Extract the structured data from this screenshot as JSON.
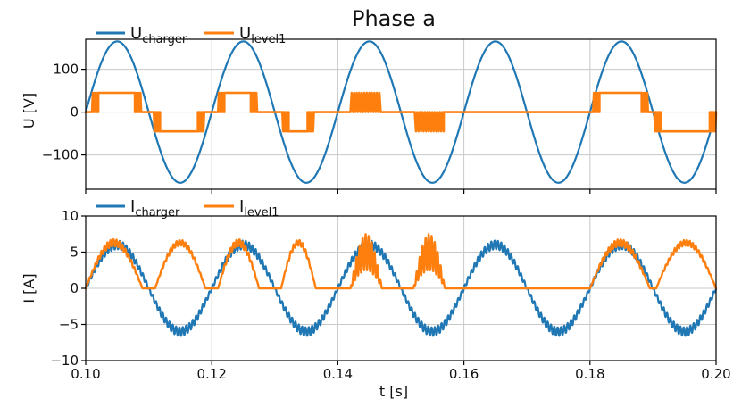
{
  "chart_data": {
    "type": "line",
    "title": "Phase a",
    "colors": {
      "blue": "#1f77b4",
      "orange": "#ff7f0e",
      "axis": "#000000",
      "grid": "#c8c8c8"
    },
    "shared_x": {
      "label": "t [s]",
      "range": [
        0.1,
        0.2
      ],
      "ticks": [
        0.1,
        0.12,
        0.14,
        0.16,
        0.18,
        0.2
      ],
      "tick_labels": [
        "0.10",
        "0.12",
        "0.14",
        "0.16",
        "0.18",
        "0.20"
      ]
    },
    "subplots": [
      {
        "ylabel": "U [V]",
        "ylim": [
          -180,
          170
        ],
        "yticks": [
          -100,
          0,
          100
        ],
        "ytick_labels": [
          "−100",
          "0",
          "100"
        ],
        "grid": true,
        "legend": {
          "placement": "top-left",
          "entries": [
            {
              "main": "U",
              "sub": "charger",
              "color": "blue"
            },
            {
              "main": "U",
              "sub": "level1",
              "color": "orange"
            }
          ]
        },
        "series": [
          {
            "name": "Ucharger",
            "color": "blue",
            "kind": "sine",
            "amplitude": 165,
            "period_s": 0.02,
            "peak_at": 0.105
          },
          {
            "name": "Ulevel1",
            "color": "orange",
            "kind": "mixed",
            "segments": [
              {
                "type": "hold",
                "x": [
                  0.1,
                  0.101
                ],
                "value": 0
              },
              {
                "type": "chop",
                "x": [
                  0.101,
                  0.102
                ],
                "value": 45
              },
              {
                "type": "hold",
                "x": [
                  0.102,
                  0.1078
                ],
                "value": 45
              },
              {
                "type": "chop",
                "x": [
                  0.1078,
                  0.1088
                ],
                "value": 45
              },
              {
                "type": "hold",
                "x": [
                  0.1088,
                  0.1108
                ],
                "value": 0
              },
              {
                "type": "chop",
                "x": [
                  0.1108,
                  0.1118
                ],
                "value": -45
              },
              {
                "type": "hold",
                "x": [
                  0.1118,
                  0.1178
                ],
                "value": -45
              },
              {
                "type": "chop",
                "x": [
                  0.1178,
                  0.1188
                ],
                "value": -45
              },
              {
                "type": "hold",
                "x": [
                  0.1188,
                  0.121
                ],
                "value": 0
              },
              {
                "type": "chop",
                "x": [
                  0.121,
                  0.122
                ],
                "value": 45
              },
              {
                "type": "hold",
                "x": [
                  0.122,
                  0.1262
                ],
                "value": 45
              },
              {
                "type": "chop",
                "x": [
                  0.1262,
                  0.1272
                ],
                "value": 45
              },
              {
                "type": "hold",
                "x": [
                  0.1272,
                  0.1312
                ],
                "value": 0
              },
              {
                "type": "chop",
                "x": [
                  0.1312,
                  0.1322
                ],
                "value": -45
              },
              {
                "type": "hold",
                "x": [
                  0.1322,
                  0.1352
                ],
                "value": -45
              },
              {
                "type": "chop",
                "x": [
                  0.1352,
                  0.1362
                ],
                "value": -45
              },
              {
                "type": "hold",
                "x": [
                  0.1362,
                  0.142
                ],
                "value": 0
              },
              {
                "type": "chop",
                "x": [
                  0.142,
                  0.1468
                ],
                "value": 45
              },
              {
                "type": "hold",
                "x": [
                  0.1468,
                  0.1522
                ],
                "value": 0
              },
              {
                "type": "chop",
                "x": [
                  0.1522,
                  0.1568
                ],
                "value": -45
              },
              {
                "type": "hold",
                "x": [
                  0.1568,
                  0.1805
                ],
                "value": 0
              },
              {
                "type": "chop",
                "x": [
                  0.1805,
                  0.1815
                ],
                "value": 45
              },
              {
                "type": "hold",
                "x": [
                  0.1815,
                  0.1882
                ],
                "value": 45
              },
              {
                "type": "chop",
                "x": [
                  0.1882,
                  0.1892
                ],
                "value": 45
              },
              {
                "type": "hold",
                "x": [
                  0.1892,
                  0.1902
                ],
                "value": 0
              },
              {
                "type": "chop",
                "x": [
                  0.1902,
                  0.1912
                ],
                "value": -45
              },
              {
                "type": "hold",
                "x": [
                  0.1912,
                  0.199
                ],
                "value": -45
              },
              {
                "type": "chop",
                "x": [
                  0.199,
                  0.2
                ],
                "value": -45
              }
            ]
          }
        ]
      },
      {
        "ylabel": "I [A]",
        "ylim": [
          -10,
          10
        ],
        "yticks": [
          -10,
          -5,
          0,
          5,
          10
        ],
        "ytick_labels": [
          "−10",
          "−5",
          "0",
          "5",
          "10"
        ],
        "grid": true,
        "legend": {
          "placement": "top-left",
          "entries": [
            {
              "main": "I",
              "sub": "charger",
              "color": "blue"
            },
            {
              "main": "I",
              "sub": "level1",
              "color": "orange"
            }
          ]
        },
        "series": [
          {
            "name": "Icharger",
            "color": "blue",
            "kind": "sine_with_ripple",
            "amplitude": 6,
            "ripple": 0.6,
            "period_s": 0.02,
            "peak_at": 0.105
          },
          {
            "name": "Ilevel1",
            "color": "orange",
            "kind": "pulses",
            "pulses": [
              {
                "start": 0.1,
                "end": 0.109,
                "amplitude": 6.3,
                "ripple": 0.5
              },
              {
                "start": 0.111,
                "end": 0.119,
                "amplitude": 6.3,
                "ripple": 0.4
              },
              {
                "start": 0.121,
                "end": 0.1275,
                "amplitude": 6.3,
                "ripple": 0.5
              },
              {
                "start": 0.131,
                "end": 0.1365,
                "amplitude": 6.3,
                "ripple": 0.4
              },
              {
                "start": 0.142,
                "end": 0.147,
                "amplitude": 5.0,
                "ripple": 2.5
              },
              {
                "start": 0.152,
                "end": 0.157,
                "amplitude": 5.0,
                "ripple": 2.5
              },
              {
                "start": 0.18,
                "end": 0.1895,
                "amplitude": 6.3,
                "ripple": 0.5
              },
              {
                "start": 0.1905,
                "end": 0.2,
                "amplitude": 6.3,
                "ripple": 0.4
              }
            ]
          }
        ]
      }
    ]
  }
}
